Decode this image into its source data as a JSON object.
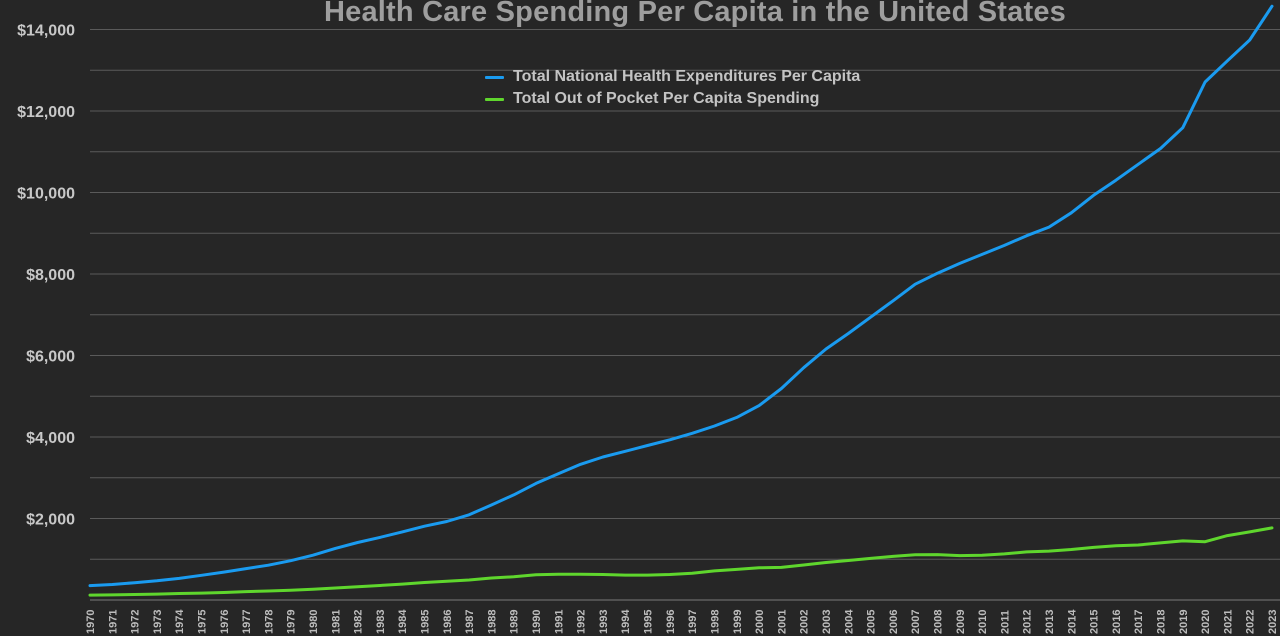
{
  "chart_data": {
    "type": "line",
    "title": "Health Care Spending Per Capita in the United States",
    "xlabel": "",
    "ylabel": "",
    "ylim": [
      0,
      14600
    ],
    "grid": true,
    "legend_position": "top-center",
    "ytick_labels": [
      "$2,000",
      "$4,000",
      "$6,000",
      "$8,000",
      "$10,000",
      "$12,000",
      "$14,000"
    ],
    "ytick_values": [
      2000,
      4000,
      6000,
      8000,
      10000,
      12000,
      14000
    ],
    "x": [
      "1970",
      "1971",
      "1972",
      "1973",
      "1974",
      "1975",
      "1976",
      "1977",
      "1978",
      "1979",
      "1980",
      "1981",
      "1982",
      "1983",
      "1984",
      "1985",
      "1986",
      "1987",
      "1988",
      "1989",
      "1990",
      "1991",
      "1992",
      "1993",
      "1994",
      "1995",
      "1996",
      "1997",
      "1998",
      "1999",
      "2000",
      "2001",
      "2002",
      "2003",
      "2004",
      "2005",
      "2006",
      "2007",
      "2008",
      "2009",
      "2010",
      "2011",
      "2012",
      "2013",
      "2014",
      "2015",
      "2016",
      "2017",
      "2018",
      "2019",
      "2020",
      "2021",
      "2022",
      "2023"
    ],
    "series": [
      {
        "name": "Total National Health Expenditures Per Capita",
        "color": "#1a9bf0",
        "values": [
          353,
          380,
          425,
          470,
          530,
          605,
          685,
          770,
          855,
          965,
          1100,
          1265,
          1410,
          1535,
          1670,
          1810,
          1925,
          2090,
          2330,
          2580,
          2860,
          3100,
          3330,
          3510,
          3650,
          3790,
          3930,
          4090,
          4270,
          4480,
          4770,
          5190,
          5700,
          6160,
          6540,
          6940,
          7340,
          7750,
          8020,
          8260,
          8480,
          8700,
          8940,
          9150,
          9500,
          9930,
          10300,
          10690,
          11080,
          11590,
          12710,
          13230,
          13740,
          14570
        ]
      },
      {
        "name": "Total Out of Pocket Per Capita Spending",
        "color": "#5fd62d",
        "values": [
          120,
          125,
          135,
          145,
          160,
          170,
          185,
          205,
          220,
          240,
          265,
          295,
          325,
          355,
          390,
          430,
          460,
          490,
          540,
          570,
          620,
          630,
          630,
          625,
          610,
          610,
          625,
          655,
          715,
          750,
          790,
          800,
          860,
          920,
          970,
          1020,
          1070,
          1110,
          1115,
          1090,
          1100,
          1130,
          1180,
          1200,
          1240,
          1290,
          1330,
          1350,
          1400,
          1450,
          1430,
          1580,
          1670,
          1770
        ]
      }
    ]
  }
}
